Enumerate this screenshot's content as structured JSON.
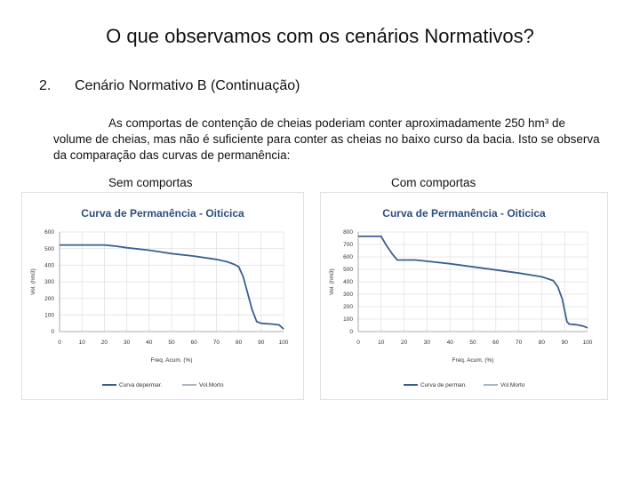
{
  "slide": {
    "title": "O que observamos com os cenários Normativos?",
    "item_number": "2.",
    "item_text": "Cenário Normativo B (Continuação)",
    "paragraph": "As comportas de contenção de cheias poderiam conter aproximadamente 250 hm³ de volume de cheias, mas não é suficiente para conter as cheias no baixo curso da bacia. Isto se observa da comparação das curvas de permanência:",
    "caption_left": "Sem comportas",
    "caption_right": "Com comportas"
  },
  "chart_data": [
    {
      "type": "line",
      "title": "Curva de Permanência - Oiticica",
      "xlabel": "Freq. Acum. (%)",
      "ylabel": "Vol. (hm3)",
      "xlim": [
        0,
        100
      ],
      "ylim": [
        0,
        600
      ],
      "xticks": [
        "0",
        "10",
        "20",
        "30",
        "40",
        "50",
        "60",
        "70",
        "80",
        "90",
        "100"
      ],
      "yticks": [
        "0",
        "100",
        "200",
        "300",
        "400",
        "500",
        "600"
      ],
      "grid": true,
      "legend_position": "bottom",
      "series": [
        {
          "name": "Curva depermar.",
          "color": "#3a5f8f",
          "points": [
            [
              0,
              522
            ],
            [
              10,
              522
            ],
            [
              20,
              522
            ],
            [
              25,
              515
            ],
            [
              30,
              505
            ],
            [
              40,
              490
            ],
            [
              45,
              480
            ],
            [
              50,
              470
            ],
            [
              60,
              455
            ],
            [
              70,
              435
            ],
            [
              75,
              420
            ],
            [
              78,
              405
            ],
            [
              80,
              390
            ],
            [
              82,
              330
            ],
            [
              84,
              230
            ],
            [
              86,
              130
            ],
            [
              88,
              60
            ],
            [
              90,
              50
            ],
            [
              95,
              45
            ],
            [
              98,
              40
            ],
            [
              100,
              15
            ]
          ]
        },
        {
          "name": "Vol.Morto",
          "color": "#a8b5c4",
          "points": []
        }
      ]
    },
    {
      "type": "line",
      "title": "Curva de Permanência - Oiticica",
      "xlabel": "Freq. Acum. (%)",
      "ylabel": "Vol. (hm3)",
      "xlim": [
        0,
        100
      ],
      "ylim": [
        0,
        800
      ],
      "xticks": [
        "0",
        "10",
        "20",
        "30",
        "40",
        "50",
        "60",
        "70",
        "80",
        "90",
        "100"
      ],
      "yticks": [
        "0",
        "100",
        "200",
        "300",
        "400",
        "500",
        "600",
        "700",
        "800"
      ],
      "grid": true,
      "legend_position": "bottom",
      "series": [
        {
          "name": "Curva de perman.",
          "color": "#3a5f8f",
          "points": [
            [
              0,
              765
            ],
            [
              10,
              765
            ],
            [
              12,
              700
            ],
            [
              15,
              620
            ],
            [
              17,
              575
            ],
            [
              25,
              575
            ],
            [
              30,
              565
            ],
            [
              40,
              545
            ],
            [
              50,
              520
            ],
            [
              60,
              495
            ],
            [
              70,
              470
            ],
            [
              80,
              440
            ],
            [
              85,
              410
            ],
            [
              87,
              360
            ],
            [
              89,
              260
            ],
            [
              90,
              170
            ],
            [
              91,
              80
            ],
            [
              92,
              60
            ],
            [
              95,
              55
            ],
            [
              98,
              45
            ],
            [
              100,
              30
            ]
          ]
        },
        {
          "name": "Vol.Morto",
          "color": "#a8b5c4",
          "points": []
        }
      ]
    }
  ]
}
